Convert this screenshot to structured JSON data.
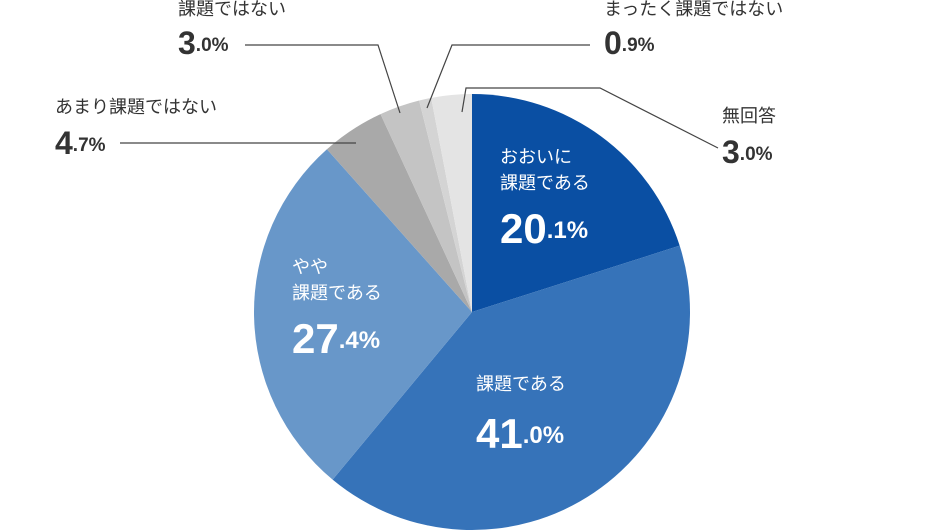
{
  "chart_data": {
    "type": "pie",
    "categories": [
      "おおいに課題である",
      "課題である",
      "やや課題である",
      "あまり課題ではない",
      "課題ではない",
      "まったく課題ではない",
      "無回答"
    ],
    "values": [
      20.1,
      41.0,
      27.4,
      4.7,
      3.0,
      0.9,
      3.0
    ],
    "value_labels": [
      "20.1%",
      "41.0%",
      "27.4%",
      "4.7%",
      "3.0%",
      "0.9%",
      "3.0%"
    ],
    "colors": [
      "#0a4fa3",
      "#3673b9",
      "#6897c9",
      "#a9a9a9",
      "#c4c4c4",
      "#d4d4d4",
      "#e4e4e4"
    ]
  }
}
